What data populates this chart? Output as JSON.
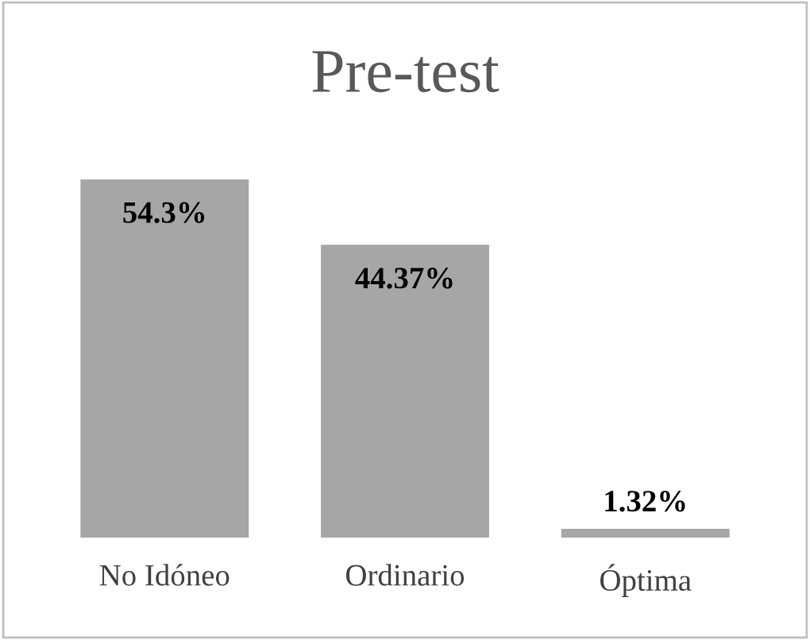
{
  "chart_data": {
    "type": "bar",
    "title": "Pre-test",
    "categories": [
      "No Idóneo",
      "Ordinario",
      "Óptima"
    ],
    "values": [
      54.3,
      44.37,
      1.32
    ],
    "value_labels": [
      "54.3%",
      "44.37%",
      "1.32%"
    ],
    "color": "#a6a6a6",
    "grid": false,
    "legend": false
  }
}
